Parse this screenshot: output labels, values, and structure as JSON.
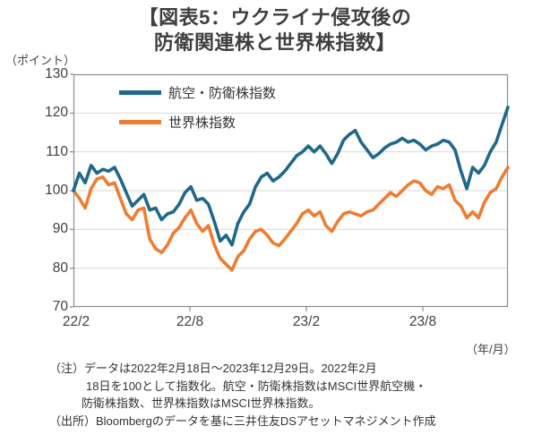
{
  "title": {
    "line1": "【図表5：ウクライナ侵攻後の",
    "line2": "防衛関連株と世界株指数】"
  },
  "y_axis": {
    "unit": "（ポイント）",
    "ticks": [
      130,
      120,
      110,
      100,
      90,
      80,
      70
    ]
  },
  "x_axis": {
    "ticks": [
      "22/2",
      "22/8",
      "23/2",
      "23/8"
    ],
    "unit": "（年/月）"
  },
  "legend": [
    {
      "label": "航空・防衛株指数",
      "color": "#20688B"
    },
    {
      "label": "世界株指数",
      "color": "#ED7D31"
    }
  ],
  "notes": [
    "（注）データは2022年2月18日～2023年12月29日。2022年2月",
    "18日を100として指数化。航空・防衛株指数はMSCI世界航空機・",
    "防衛株指数、世界株指数はMSCI世界株指数。",
    "（出所）Bloombergのデータを基に三井住友DSアセットマネジメント作成"
  ],
  "colors": {
    "defense_line": "#20688B",
    "world_line": "#ED7D31",
    "gridline": "#D9D9D9",
    "plot_border": "#8C8C8C",
    "text": "#3F3F3F"
  },
  "chart_data": {
    "type": "line",
    "title": "図表5：ウクライナ侵攻後の防衛関連株と世界株指数",
    "x_range": [
      "2022-02-18",
      "2023-12-29"
    ],
    "x_tick_labels": [
      "22/2",
      "22/8",
      "23/2",
      "23/8"
    ],
    "xlabel": "年/月",
    "ylabel": "ポイント",
    "ylim": [
      70,
      130
    ],
    "y_gridline_step": 10,
    "grid": true,
    "legend_position": "top-left-inside",
    "series": [
      {
        "name": "世界株指数",
        "color": "#ED7D31",
        "values": [
          100,
          98,
          95.5,
          100.5,
          103,
          103.5,
          101.5,
          102,
          98,
          94,
          92.5,
          95,
          95.5,
          87.5,
          85,
          84,
          86,
          89,
          90.5,
          93,
          95,
          91.5,
          89.5,
          91,
          86,
          82.5,
          81,
          79.5,
          83,
          84.5,
          87.5,
          89.5,
          90,
          88.5,
          86.5,
          85.8,
          87.5,
          89.5,
          91.5,
          94,
          95,
          93.5,
          94.5,
          91,
          89.5,
          92,
          94,
          94.5,
          94,
          93.5,
          94.5,
          95,
          96.5,
          98,
          99.5,
          98.5,
          100,
          101.5,
          102.5,
          102,
          100,
          99,
          101,
          100.5,
          101.5,
          97.5,
          96,
          93,
          94.5,
          93,
          97,
          99.5,
          100.5,
          103.5,
          106
        ]
      },
      {
        "name": "航空・防衛株指数",
        "color": "#20688B",
        "values": [
          100,
          104.5,
          102,
          106.5,
          104.5,
          105.5,
          105,
          106,
          103,
          99.5,
          96,
          97.5,
          99,
          95,
          95.5,
          92.5,
          94,
          94.5,
          96.5,
          99.5,
          101,
          97.5,
          98,
          96.5,
          92,
          87,
          88.5,
          86,
          91.5,
          94.5,
          96.5,
          101,
          103.5,
          104.5,
          102.5,
          103.5,
          105,
          107,
          109,
          110,
          111.5,
          110,
          111.5,
          109.5,
          107,
          109.5,
          113,
          114.5,
          115.5,
          112.5,
          110.5,
          108.5,
          109.5,
          111,
          112,
          112.5,
          113.5,
          112.5,
          113,
          112,
          110.5,
          111.5,
          112,
          113,
          112.5,
          110.5,
          105,
          100.5,
          106,
          104.5,
          106.5,
          110,
          112.5,
          117,
          121.5
        ]
      }
    ]
  }
}
